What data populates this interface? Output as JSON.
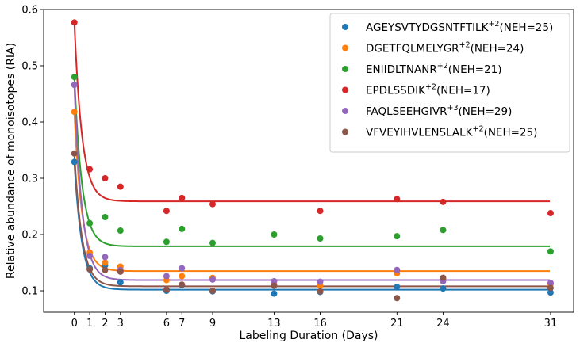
{
  "chart_data": {
    "type": "scatter",
    "title": "",
    "xlabel": "Labeling Duration (Days)",
    "ylabel": "Relative abundance of monoisotopes (RIA)",
    "xlim": [
      -2,
      32.5
    ],
    "ylim": [
      0.062,
      0.6
    ],
    "xticks": [
      0,
      1,
      2,
      3,
      6,
      7,
      9,
      13,
      16,
      21,
      24,
      31
    ],
    "yticks": [
      0.1,
      0.2,
      0.3,
      0.4,
      0.5,
      0.6
    ],
    "xtick_labels": [
      "0",
      "1",
      "2",
      "3",
      "6",
      "7",
      "9",
      "13",
      "16",
      "21",
      "24",
      "31"
    ],
    "ytick_labels": [
      "0.1",
      "0.2",
      "0.3",
      "0.4",
      "0.5",
      "0.6"
    ],
    "legend_position": "top-right",
    "grid": false,
    "series": [
      {
        "name": "AGEYSVTYDGSNTFTILK",
        "charge": "+2",
        "suffix": "(NEH=25)",
        "color": "#1f77b4",
        "x": [
          0,
          1,
          2,
          3,
          6,
          7,
          9,
          13,
          16,
          21,
          24,
          31
        ],
        "y": [
          0.329,
          0.14,
          0.145,
          0.115,
          0.1,
          0.11,
          0.099,
          0.095,
          0.098,
          0.107,
          0.104,
          0.097
        ],
        "fit": {
          "start": 0.329,
          "plateau": 0.102,
          "k": 2.0
        }
      },
      {
        "name": "DGETFQLMELYGR",
        "charge": "+2",
        "suffix": "(NEH=24)",
        "color": "#ff7f0e",
        "x": [
          0,
          1,
          2,
          3,
          6,
          7,
          9,
          13,
          16,
          21,
          24,
          31
        ],
        "y": [
          0.418,
          0.168,
          0.15,
          0.143,
          0.119,
          0.126,
          0.123,
          0.111,
          0.109,
          0.131,
          0.123,
          0.112
        ],
        "fit": {
          "start": 0.418,
          "plateau": 0.135,
          "k": 2.0
        }
      },
      {
        "name": "ENIIDLTNANR",
        "charge": "+2",
        "suffix": "(NEH=21)",
        "color": "#2ca02c",
        "x": [
          0,
          1,
          2,
          3,
          6,
          7,
          9,
          13,
          16,
          21,
          24,
          31
        ],
        "y": [
          0.48,
          0.22,
          0.231,
          0.207,
          0.187,
          0.21,
          0.185,
          0.2,
          0.193,
          0.197,
          0.208,
          0.17
        ],
        "fit": {
          "start": 0.48,
          "plateau": 0.179,
          "k": 2.0
        }
      },
      {
        "name": "EPDLSSDIK",
        "charge": "+2",
        "suffix": "(NEH=17)",
        "color": "#d62728",
        "x": [
          0,
          1,
          2,
          3,
          6,
          7,
          9,
          21,
          16,
          24,
          31
        ],
        "y": [
          0.577,
          0.316,
          0.3,
          0.285,
          0.242,
          0.265,
          0.254,
          0.263,
          0.242,
          0.258,
          0.238
        ],
        "fit": {
          "start": 0.577,
          "plateau": 0.259,
          "k": 2.0
        }
      },
      {
        "name": "FAQLSEEHGIVR",
        "charge": "+3",
        "suffix": "(NEH=29)",
        "color": "#9467bd",
        "x": [
          0,
          1,
          2,
          3,
          6,
          7,
          9,
          13,
          16,
          21,
          24,
          31
        ],
        "y": [
          0.466,
          0.162,
          0.16,
          0.137,
          0.126,
          0.14,
          0.12,
          0.117,
          0.116,
          0.137,
          0.117,
          0.114
        ],
        "fit": {
          "start": 0.466,
          "plateau": 0.119,
          "k": 2.0
        }
      },
      {
        "name": "VFVEYIHVLENSLALK",
        "charge": "+2",
        "suffix": "(NEH=25)",
        "color": "#8c564b",
        "x": [
          0,
          1,
          2,
          3,
          6,
          7,
          9,
          13,
          16,
          21,
          24,
          31
        ],
        "y": [
          0.344,
          0.138,
          0.137,
          0.134,
          0.102,
          0.111,
          0.1,
          0.109,
          0.099,
          0.087,
          0.123,
          0.105
        ],
        "fit": {
          "start": 0.344,
          "plateau": 0.108,
          "k": 2.0
        }
      }
    ]
  }
}
